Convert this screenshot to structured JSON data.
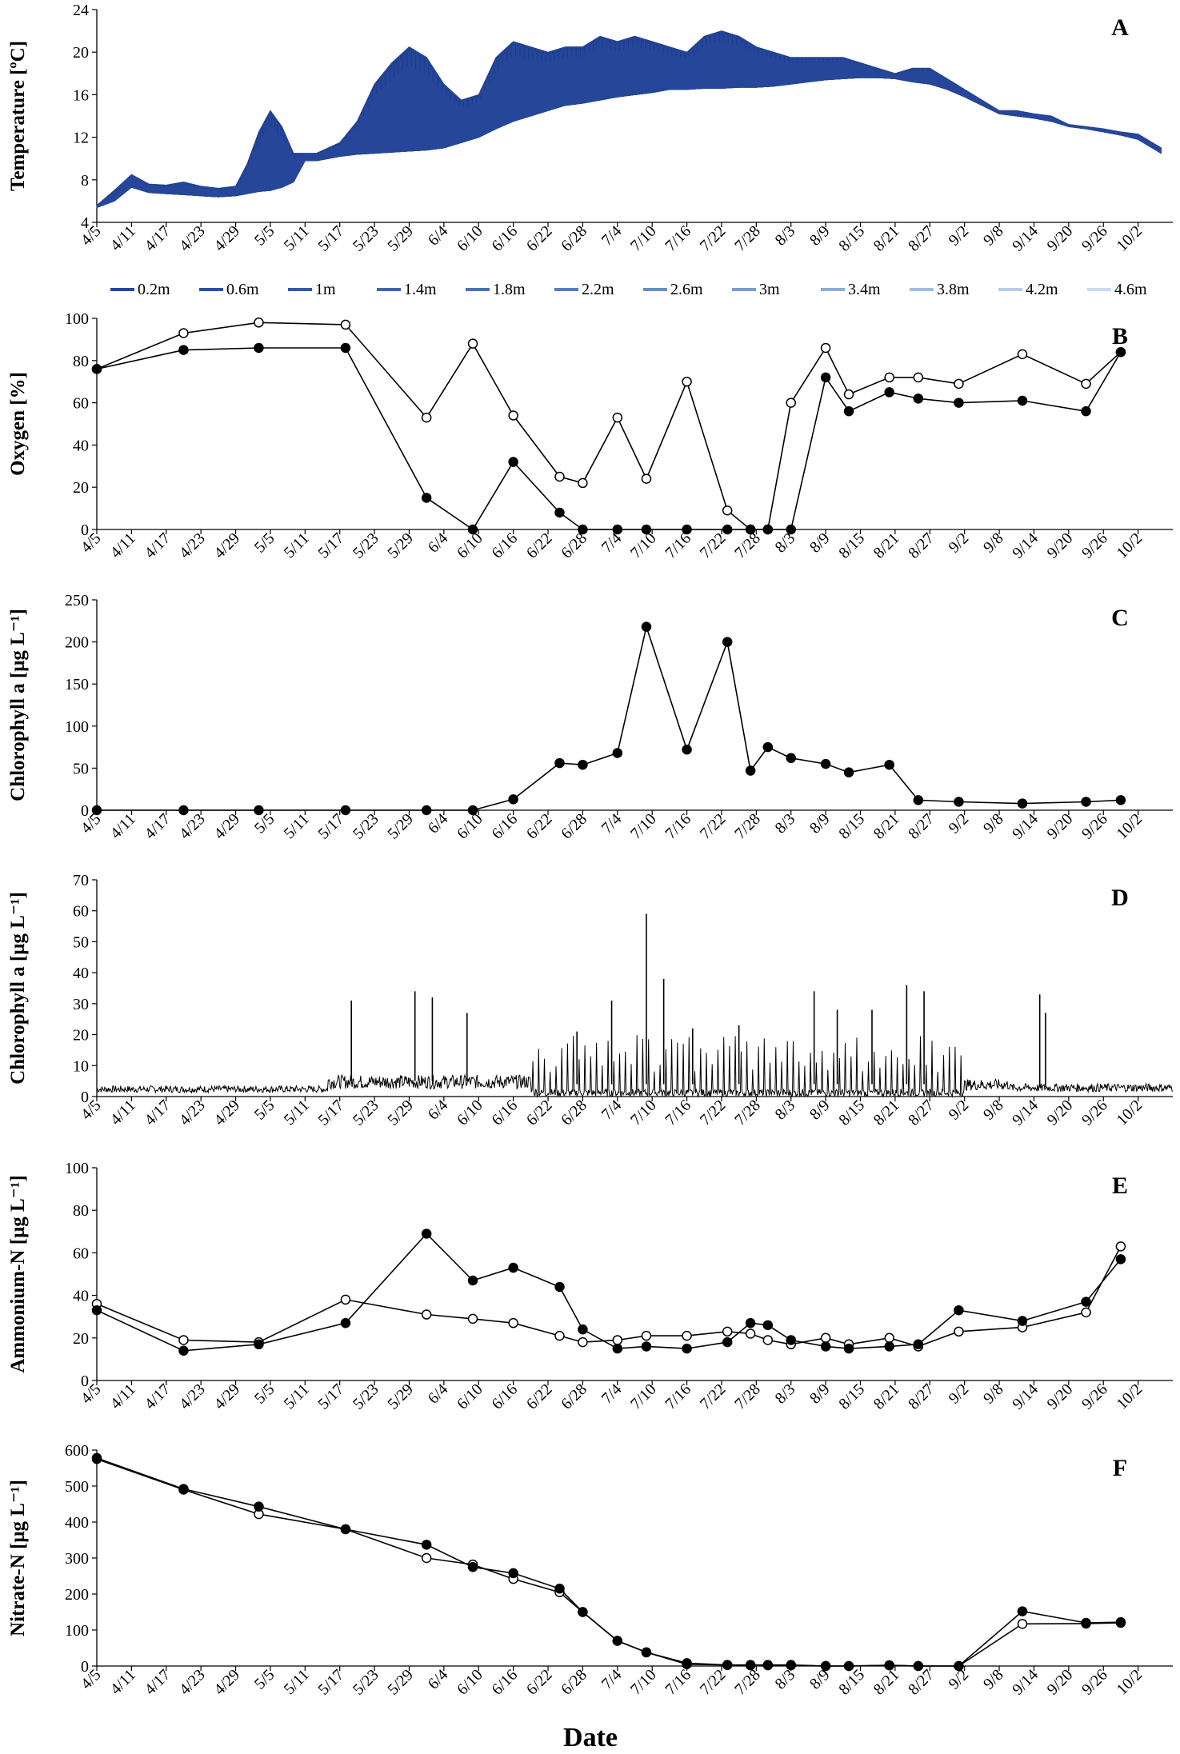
{
  "colors": {
    "axis": "#000000",
    "series_black": "#000000",
    "open_marker_fill": "#ffffff",
    "depth_gradient": [
      "#26469a",
      "#2d509f",
      "#355aa6",
      "#3f65ad",
      "#4a71b4",
      "#577ebc",
      "#678cc4",
      "#7a9ccd",
      "#8eacd6",
      "#a3bcdf",
      "#b8cce7",
      "#cbdaee"
    ]
  },
  "x_axis": {
    "title": "Date",
    "ticks": [
      "4/5",
      "4/11",
      "4/17",
      "4/23",
      "4/29",
      "5/5",
      "5/11",
      "5/17",
      "5/23",
      "5/29",
      "6/4",
      "6/10",
      "6/16",
      "6/22",
      "6/28",
      "7/4",
      "7/10",
      "7/16",
      "7/22",
      "7/28",
      "8/3",
      "8/9",
      "8/15",
      "8/21",
      "8/27",
      "9/2",
      "9/8",
      "9/14",
      "9/20",
      "9/26",
      "10/2"
    ],
    "day_range": [
      0,
      186
    ]
  },
  "chart_data": [
    {
      "panel": "A",
      "type": "area",
      "ylabel": "Temperature [ºC]",
      "ylim": [
        4,
        24
      ],
      "yticks": [
        4,
        8,
        12,
        16,
        20,
        24
      ],
      "legend_position": "bottom",
      "series": [
        {
          "name": "0.2m"
        },
        {
          "name": "0.6m"
        },
        {
          "name": "1m"
        },
        {
          "name": "1.4m"
        },
        {
          "name": "1.8m"
        },
        {
          "name": "2.2m"
        },
        {
          "name": "2.6m"
        },
        {
          "name": "3m"
        },
        {
          "name": "3.4m"
        },
        {
          "name": "3.8m"
        },
        {
          "name": "4.2m"
        },
        {
          "name": "4.6m"
        }
      ],
      "envelope": {
        "x": [
          "4/5",
          "4/8",
          "4/11",
          "4/14",
          "4/17",
          "4/20",
          "4/23",
          "4/26",
          "4/29",
          "5/1",
          "5/3",
          "5/5",
          "5/7",
          "5/9",
          "5/11",
          "5/13",
          "5/15",
          "5/17",
          "5/20",
          "5/23",
          "5/26",
          "5/29",
          "6/1",
          "6/4",
          "6/7",
          "6/10",
          "6/13",
          "6/16",
          "6/19",
          "6/22",
          "6/25",
          "6/28",
          "7/1",
          "7/4",
          "7/7",
          "7/10",
          "7/13",
          "7/16",
          "7/19",
          "7/22",
          "7/25",
          "7/28",
          "7/31",
          "8/3",
          "8/6",
          "8/9",
          "8/12",
          "8/15",
          "8/18",
          "8/21",
          "8/24",
          "8/27",
          "8/30",
          "9/2",
          "9/5",
          "9/8",
          "9/11",
          "9/14",
          "9/17",
          "9/20",
          "9/23",
          "9/26",
          "9/29",
          "10/2",
          "10/6"
        ],
        "top": [
          5.6,
          7.0,
          8.5,
          7.6,
          7.5,
          7.8,
          7.4,
          7.2,
          7.4,
          9.5,
          12.5,
          14.5,
          13.0,
          10.5,
          10.5,
          10.5,
          11.0,
          11.5,
          13.5,
          17.0,
          19.0,
          20.5,
          19.5,
          17.0,
          15.5,
          16.0,
          19.5,
          21.0,
          20.5,
          20.0,
          20.5,
          20.5,
          21.5,
          21.0,
          21.5,
          21.0,
          20.5,
          20.0,
          21.5,
          22.0,
          21.5,
          20.5,
          20.0,
          19.5,
          19.5,
          19.5,
          19.5,
          19.0,
          18.5,
          18.0,
          18.5,
          18.5,
          17.5,
          16.5,
          15.5,
          14.5,
          14.5,
          14.2,
          14.0,
          13.2,
          13.0,
          12.8,
          12.5,
          12.3,
          11.0
        ],
        "bottom": [
          5.4,
          6.0,
          7.3,
          6.8,
          6.7,
          6.6,
          6.5,
          6.4,
          6.5,
          6.7,
          6.9,
          7.0,
          7.3,
          7.8,
          9.8,
          9.8,
          10.0,
          10.2,
          10.4,
          10.5,
          10.6,
          10.7,
          10.8,
          11.0,
          11.5,
          12.0,
          12.8,
          13.5,
          14.0,
          14.5,
          15.0,
          15.2,
          15.5,
          15.8,
          16.0,
          16.2,
          16.5,
          16.5,
          16.6,
          16.6,
          16.7,
          16.7,
          16.8,
          17.0,
          17.2,
          17.4,
          17.5,
          17.6,
          17.6,
          17.5,
          17.2,
          17.0,
          16.5,
          15.8,
          15.0,
          14.2,
          14.0,
          13.8,
          13.5,
          13.0,
          12.8,
          12.5,
          12.2,
          11.8,
          10.5
        ]
      }
    },
    {
      "panel": "B",
      "type": "line",
      "ylabel": "Oxygen [%]",
      "ylim": [
        0,
        100
      ],
      "yticks": [
        0,
        20,
        40,
        60,
        80,
        100
      ],
      "series": [
        {
          "marker": "open",
          "x": [
            "4/5",
            "4/20",
            "5/3",
            "5/18",
            "6/1",
            "6/9",
            "6/16",
            "6/24",
            "6/28",
            "7/4",
            "7/9",
            "7/16",
            "7/23",
            "7/27",
            "7/30",
            "8/3",
            "8/9",
            "8/13",
            "8/20",
            "8/25",
            "9/1",
            "9/12",
            "9/23",
            "9/29"
          ],
          "values": [
            76,
            93,
            98,
            97,
            53,
            88,
            54,
            25,
            22,
            53,
            24,
            70,
            9,
            0,
            0,
            60,
            86,
            64,
            72,
            72,
            69,
            83,
            69,
            84
          ]
        },
        {
          "marker": "filled",
          "x": [
            "4/5",
            "4/20",
            "5/3",
            "5/18",
            "6/1",
            "6/9",
            "6/16",
            "6/24",
            "6/28",
            "7/4",
            "7/9",
            "7/16",
            "7/23",
            "7/27",
            "7/30",
            "8/3",
            "8/9",
            "8/13",
            "8/20",
            "8/25",
            "9/1",
            "9/12",
            "9/23",
            "9/29"
          ],
          "values": [
            76,
            85,
            86,
            86,
            15,
            0,
            32,
            8,
            0,
            0,
            0,
            0,
            0,
            0,
            0,
            0,
            72,
            56,
            65,
            62,
            60,
            61,
            56,
            84
          ]
        }
      ]
    },
    {
      "panel": "C",
      "type": "line",
      "ylabel": "Chlorophyll a [μg L⁻¹]",
      "ylim": [
        0,
        250
      ],
      "yticks": [
        0,
        50,
        100,
        150,
        200,
        250
      ],
      "series": [
        {
          "marker": "filled",
          "x": [
            "4/5",
            "4/20",
            "5/3",
            "5/18",
            "6/1",
            "6/9",
            "6/16",
            "6/24",
            "6/28",
            "7/4",
            "7/9",
            "7/16",
            "7/23",
            "7/27",
            "7/30",
            "8/3",
            "8/9",
            "8/13",
            "8/20",
            "8/25",
            "9/1",
            "9/12",
            "9/23",
            "9/29"
          ],
          "values": [
            0,
            0,
            0,
            0,
            0,
            0,
            13,
            56,
            54,
            68,
            218,
            72,
            200,
            47,
            75,
            62,
            55,
            45,
            54,
            12,
            10,
            8,
            10,
            12
          ]
        }
      ]
    },
    {
      "panel": "D",
      "type": "line",
      "ylabel": "Chlorophyll a [μg L⁻¹]",
      "ylim": [
        0,
        70
      ],
      "yticks": [
        0,
        10,
        20,
        30,
        40,
        50,
        60,
        70
      ],
      "series": [
        {
          "name": "",
          "baseline_by_period": [
            {
              "from": "4/5",
              "to": "5/15",
              "level": 2.5
            },
            {
              "from": "5/15",
              "to": "6/20",
              "level": 5
            },
            {
              "from": "6/20",
              "to": "9/10",
              "level": 4
            },
            {
              "from": "9/10",
              "to": "10/6",
              "level": 3
            }
          ],
          "peaks": {
            "x": [
              "5/19",
              "5/30",
              "6/2",
              "6/8",
              "6/27",
              "7/3",
              "7/9",
              "7/12",
              "7/17",
              "7/25",
              "8/7",
              "8/11",
              "8/17",
              "8/23",
              "8/26",
              "9/15",
              "9/16"
            ],
            "values": [
              31,
              34,
              32,
              27,
              21,
              31,
              59,
              38,
              22,
              23,
              34,
              28,
              28,
              36,
              34,
              33,
              27
            ]
          }
        }
      ]
    },
    {
      "panel": "E",
      "type": "line",
      "ylabel": "Ammonium-N [μg L⁻¹]",
      "ylim": [
        0,
        100
      ],
      "yticks": [
        0,
        20,
        40,
        60,
        80,
        100
      ],
      "series": [
        {
          "marker": "open",
          "x": [
            "4/5",
            "4/20",
            "5/3",
            "5/18",
            "6/1",
            "6/9",
            "6/16",
            "6/24",
            "6/28",
            "7/4",
            "7/9",
            "7/16",
            "7/23",
            "7/27",
            "7/30",
            "8/3",
            "8/9",
            "8/13",
            "8/20",
            "8/25",
            "9/1",
            "9/12",
            "9/23",
            "9/29"
          ],
          "values": [
            36,
            19,
            18,
            38,
            31,
            29,
            27,
            21,
            18,
            19,
            21,
            21,
            23,
            22,
            19,
            17,
            20,
            17,
            20,
            16,
            23,
            25,
            32,
            63
          ]
        },
        {
          "marker": "filled",
          "x": [
            "4/5",
            "4/20",
            "5/3",
            "5/18",
            "6/1",
            "6/9",
            "6/16",
            "6/24",
            "6/28",
            "7/4",
            "7/9",
            "7/16",
            "7/23",
            "7/27",
            "7/30",
            "8/3",
            "8/9",
            "8/13",
            "8/20",
            "8/25",
            "9/1",
            "9/12",
            "9/23",
            "9/29"
          ],
          "values": [
            33,
            14,
            17,
            27,
            69,
            47,
            53,
            44,
            24,
            15,
            16,
            15,
            18,
            27,
            26,
            19,
            16,
            15,
            16,
            17,
            33,
            28,
            37,
            57
          ]
        }
      ]
    },
    {
      "panel": "F",
      "type": "line",
      "ylabel": "Nitrate-N [μg L⁻¹]",
      "ylim": [
        0,
        600
      ],
      "yticks": [
        0,
        100,
        200,
        300,
        400,
        500,
        600
      ],
      "series": [
        {
          "marker": "open",
          "x": [
            "4/5",
            "4/20",
            "5/3",
            "5/18",
            "6/1",
            "6/9",
            "6/16",
            "6/24",
            "6/28",
            "7/4",
            "7/9",
            "7/16",
            "7/23",
            "7/27",
            "7/30",
            "8/3",
            "8/9",
            "8/13",
            "8/20",
            "8/25",
            "9/1",
            "9/12",
            "9/23",
            "9/29"
          ],
          "values": [
            575,
            490,
            422,
            380,
            300,
            282,
            242,
            205,
            150,
            70,
            38,
            8,
            3,
            2,
            2,
            2,
            0,
            0,
            2,
            0,
            0,
            117,
            118,
            120
          ]
        },
        {
          "marker": "filled",
          "x": [
            "4/5",
            "4/20",
            "5/3",
            "5/18",
            "6/1",
            "6/9",
            "6/16",
            "6/24",
            "6/28",
            "7/4",
            "7/9",
            "7/16",
            "7/23",
            "7/27",
            "7/30",
            "8/3",
            "8/9",
            "8/13",
            "8/20",
            "8/25",
            "9/1",
            "9/12",
            "9/23",
            "9/29"
          ],
          "values": [
            578,
            492,
            443,
            380,
            337,
            275,
            258,
            215,
            150,
            70,
            38,
            5,
            3,
            3,
            3,
            3,
            0,
            0,
            2,
            0,
            0,
            152,
            120,
            122
          ]
        }
      ]
    }
  ]
}
